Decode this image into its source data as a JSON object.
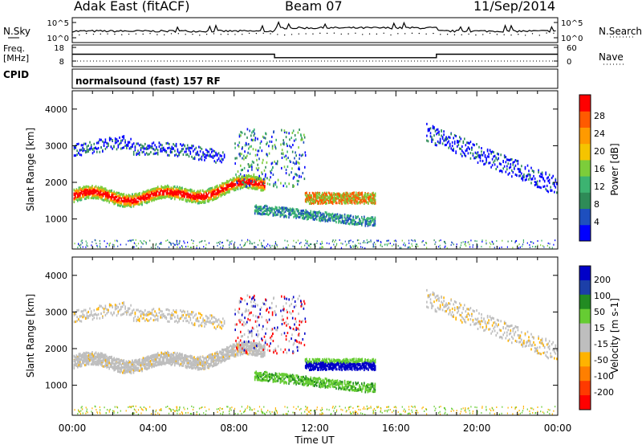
{
  "header": {
    "station": "Adak East (fitACF)",
    "beam": "Beam 07",
    "date": "11/Sep/2014"
  },
  "left_labels": {
    "nsky": "N.Sky",
    "freq": "Freq.",
    "mhz": "[MHz]",
    "cpid": "CPID"
  },
  "right_labels": {
    "nsearch": "N.Search",
    "nave": "Nave"
  },
  "cpid_text": "normalsound (fast) 157 RF",
  "colors": {
    "power": [
      "#0000ff",
      "#1e4fbe",
      "#2e8b57",
      "#3cb371",
      "#7ccd3a",
      "#f5c400",
      "#ff9a00",
      "#ff5a00",
      "#ff0000"
    ],
    "velocity": [
      "#0000c8",
      "#1c3fa8",
      "#228b22",
      "#66cc33",
      "#bebebe",
      "#bebebe",
      "#ffb300",
      "#ff7f00",
      "#ff3a00",
      "#ff0000"
    ]
  },
  "chart_data": [
    {
      "type": "line",
      "name": "noise",
      "yticks_left": [
        "10^5",
        "10^0"
      ],
      "yticks_right": [
        "10^5",
        "10^0"
      ]
    },
    {
      "type": "line",
      "name": "frequency",
      "yticks_left": [
        "18",
        "8"
      ],
      "yticks_right": [
        "60",
        "0"
      ],
      "x_hours": [
        0,
        10,
        10,
        18,
        18,
        24
      ],
      "freq_mhz": [
        13,
        13,
        10.5,
        10.5,
        13,
        13
      ]
    },
    {
      "type": "heatmap",
      "name": "power",
      "ylabel": "Slant Range [km]",
      "yticks": [
        "4000",
        "3000",
        "2000",
        "1000"
      ],
      "ylim": [
        180,
        4500
      ],
      "xlim": [
        0,
        24
      ],
      "colorbar_label": "Power [dB]",
      "colorbar_ticks": [
        "28",
        "24",
        "20",
        "16",
        "12",
        "8",
        "4"
      ]
    },
    {
      "type": "heatmap",
      "name": "velocity",
      "ylabel": "Slant Range [km]",
      "yticks": [
        "4000",
        "3000",
        "2000",
        "1000"
      ],
      "ylim": [
        180,
        4500
      ],
      "xlim": [
        0,
        24
      ],
      "xticks": [
        "00:00",
        "04:00",
        "08:00",
        "12:00",
        "16:00",
        "20:00",
        "00:00"
      ],
      "xlabel": "Time UT",
      "colorbar_label": "Velocity [m s-1]",
      "colorbar_ticks": [
        "200",
        "100",
        "50",
        "15",
        "-15",
        "-50",
        "-100",
        "-200"
      ]
    }
  ]
}
